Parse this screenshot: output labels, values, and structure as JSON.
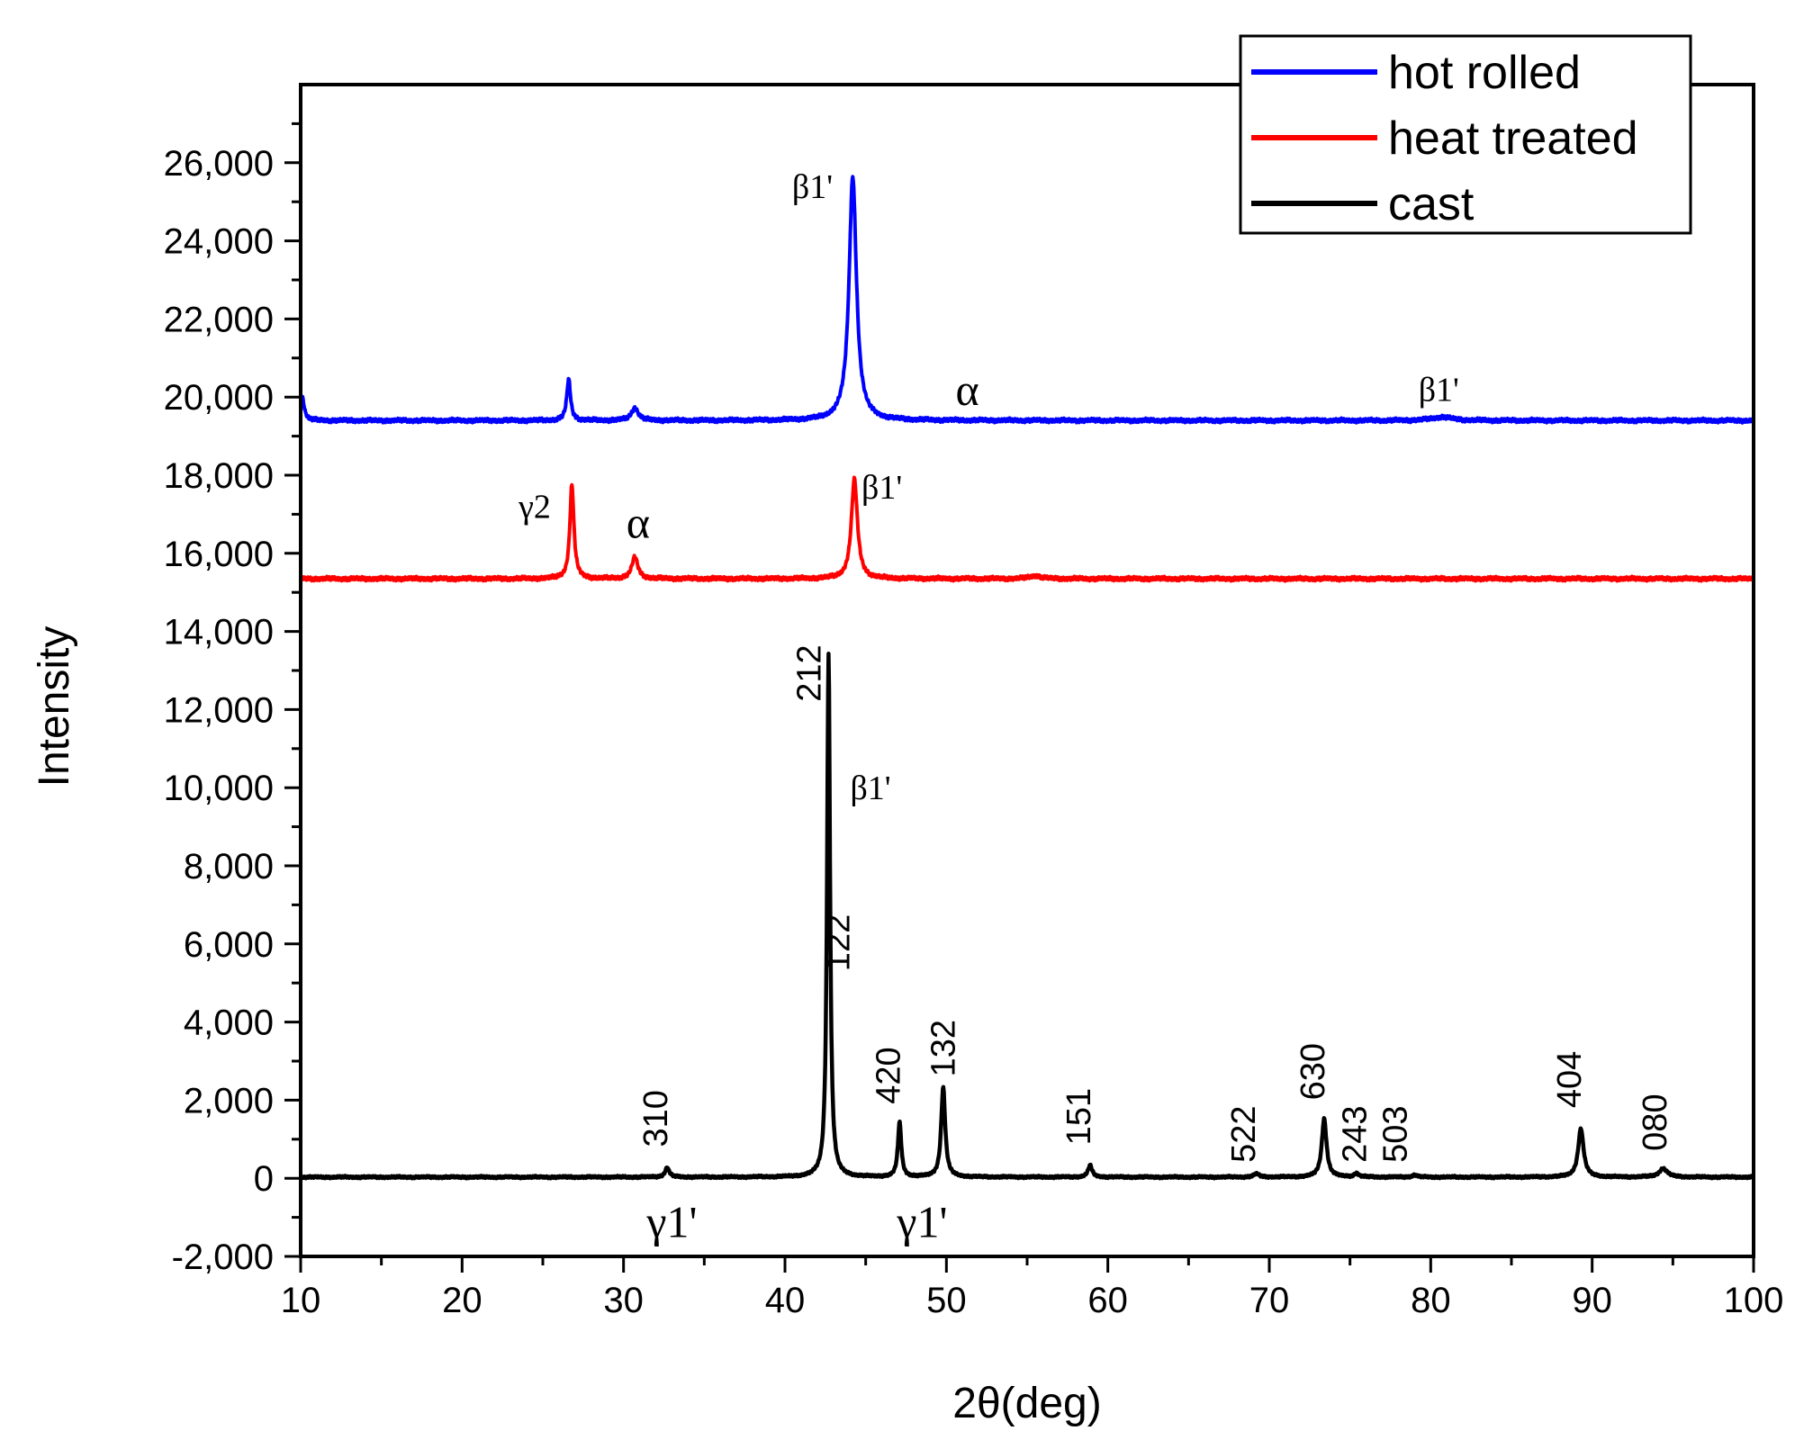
{
  "chart_data": {
    "type": "line",
    "title": "",
    "xlabel": "2θ(deg)",
    "ylabel": "Intensity",
    "xlim": [
      10,
      100
    ],
    "ylim": [
      -2000,
      28000
    ],
    "grid": false,
    "legend_position": "top-right",
    "x_ticks": [
      10,
      20,
      30,
      40,
      50,
      60,
      70,
      80,
      90,
      100
    ],
    "x_tick_labels": [
      "10",
      "20",
      "30",
      "40",
      "50",
      "60",
      "70",
      "80",
      "90",
      "100"
    ],
    "y_ticks": [
      -2000,
      0,
      2000,
      4000,
      6000,
      8000,
      10000,
      12000,
      14000,
      16000,
      18000,
      20000,
      22000,
      24000,
      26000
    ],
    "y_tick_labels": [
      "-2,000",
      "0",
      "2,000",
      "4,000",
      "6,000",
      "8,000",
      "10,000",
      "12,000",
      "14,000",
      "16,000",
      "18,000",
      "20,000",
      "22,000",
      "24,000",
      "26,000"
    ],
    "series": [
      {
        "name": "hot rolled",
        "color": "#0000ff",
        "baseline": 19400,
        "peaks": [
          {
            "x": 10.1,
            "height": 600,
            "width": 0.3
          },
          {
            "x": 26.6,
            "height": 1050,
            "width": 0.28
          },
          {
            "x": 30.7,
            "height": 330,
            "width": 0.5
          },
          {
            "x": 44.2,
            "height": 6250,
            "width": 0.55
          },
          {
            "x": 80.7,
            "height": 90,
            "width": 1.5
          }
        ]
      },
      {
        "name": "heat treated",
        "color": "#ff0000",
        "baseline": 15350,
        "peaks": [
          {
            "x": 26.8,
            "height": 2400,
            "width": 0.3
          },
          {
            "x": 30.7,
            "height": 550,
            "width": 0.45
          },
          {
            "x": 44.3,
            "height": 2550,
            "width": 0.45
          },
          {
            "x": 55.5,
            "height": 80,
            "width": 0.8
          }
        ]
      },
      {
        "name": "cast",
        "color": "#000000",
        "baseline": 30,
        "peaks": [
          {
            "x": 32.7,
            "height": 250,
            "width": 0.3
          },
          {
            "x": 42.7,
            "height": 13400,
            "width": 0.22
          },
          {
            "x": 47.1,
            "height": 1400,
            "width": 0.25
          },
          {
            "x": 49.8,
            "height": 2300,
            "width": 0.3
          },
          {
            "x": 58.9,
            "height": 300,
            "width": 0.3
          },
          {
            "x": 69.2,
            "height": 80,
            "width": 0.4
          },
          {
            "x": 73.4,
            "height": 1500,
            "width": 0.35
          },
          {
            "x": 75.4,
            "height": 100,
            "width": 0.3
          },
          {
            "x": 79.0,
            "height": 60,
            "width": 0.3
          },
          {
            "x": 89.3,
            "height": 1250,
            "width": 0.4
          },
          {
            "x": 94.4,
            "height": 220,
            "width": 0.6
          }
        ]
      }
    ],
    "peak_labels": [
      {
        "text": "310",
        "x": 32.7,
        "y": 800,
        "rotate": true
      },
      {
        "text": "212",
        "x": 42.2,
        "y": 12200,
        "rotate": true
      },
      {
        "text": "122",
        "x": 44.0,
        "y": 5300,
        "rotate": true
      },
      {
        "text": "420",
        "x": 47.1,
        "y": 1900,
        "rotate": true
      },
      {
        "text": "132",
        "x": 50.5,
        "y": 2600,
        "rotate": true
      },
      {
        "text": "151",
        "x": 58.9,
        "y": 850,
        "rotate": true
      },
      {
        "text": "522",
        "x": 69.1,
        "y": 400,
        "rotate": true
      },
      {
        "text": "630",
        "x": 73.4,
        "y": 2000,
        "rotate": true
      },
      {
        "text": "243",
        "x": 76.0,
        "y": 400,
        "rotate": true
      },
      {
        "text": "503",
        "x": 78.5,
        "y": 400,
        "rotate": true
      },
      {
        "text": "404",
        "x": 89.3,
        "y": 1800,
        "rotate": true
      },
      {
        "text": "080",
        "x": 94.6,
        "y": 700,
        "rotate": true
      }
    ],
    "phase_labels": [
      {
        "text": "β1'",
        "x": 41.7,
        "y": 25100,
        "size": "medium"
      },
      {
        "text": "α",
        "x": 51.3,
        "y": 19800,
        "size": "large"
      },
      {
        "text": "β1'",
        "x": 80.5,
        "y": 19900,
        "size": "medium"
      },
      {
        "text": "γ2",
        "x": 24.5,
        "y": 16900,
        "size": "medium"
      },
      {
        "text": "α",
        "x": 30.9,
        "y": 16400,
        "size": "large"
      },
      {
        "text": "β1'",
        "x": 46.0,
        "y": 17400,
        "size": "medium"
      },
      {
        "text": "β1'",
        "x": 45.3,
        "y": 9700,
        "size": "medium"
      },
      {
        "text": "γ1'",
        "x": 33.0,
        "y": -1500,
        "size": "large"
      },
      {
        "text": "γ1'",
        "x": 48.5,
        "y": -1500,
        "size": "large"
      }
    ]
  }
}
